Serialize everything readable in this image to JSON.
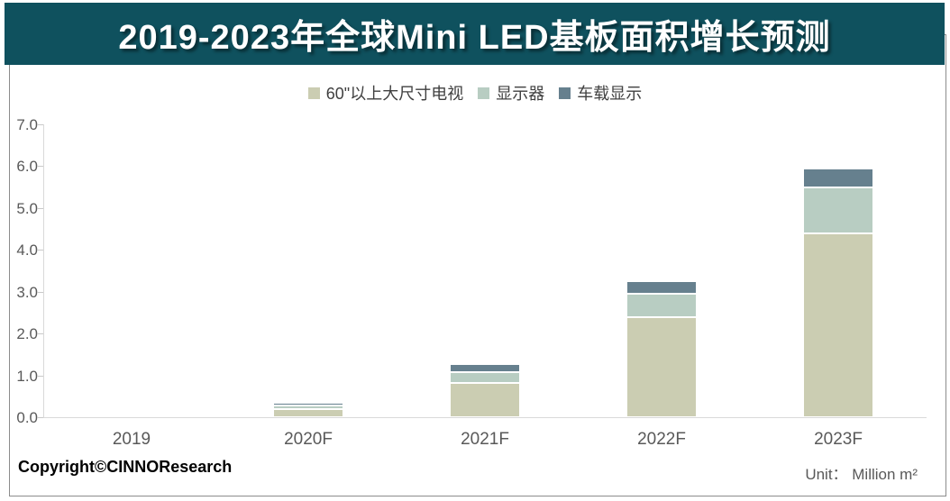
{
  "title": "2019-2023年全球Mini LED基板面积增长预测",
  "footer": {
    "copyright": "Copyright©CINNOResearch",
    "unit": "Unit： Million m²"
  },
  "colors": {
    "banner_background": "#0f515e",
    "title_text": "#ffffff",
    "axis_text": "#595959",
    "legend_text": "#404040",
    "axis_line": "#d9d9d9",
    "frame_border": "#8c8c8c",
    "series_tv": "#cbcdb2",
    "series_monitor": "#b8cdc2",
    "series_auto": "#66808e"
  },
  "chart_data": {
    "type": "bar",
    "stacked": true,
    "title": "2019-2023年全球Mini LED基板面积增长预测",
    "categories": [
      "2019",
      "2020F",
      "2021F",
      "2022F",
      "2023F"
    ],
    "series": [
      {
        "name": "60\"以上大尺寸电视",
        "color": "#cbcdb2",
        "values": [
          0,
          0.2,
          0.82,
          2.4,
          4.4
        ]
      },
      {
        "name": "显示器",
        "color": "#b8cdc2",
        "values": [
          0,
          0.07,
          0.25,
          0.55,
          1.1
        ]
      },
      {
        "name": "车载显示",
        "color": "#66808e",
        "values": [
          0,
          0.08,
          0.2,
          0.3,
          0.45
        ]
      }
    ],
    "totals": [
      0,
      0.35,
      1.27,
      3.25,
      5.95
    ],
    "xlabel": "",
    "ylabel": "",
    "unit": "Million m²",
    "ylim": [
      0,
      7.0
    ],
    "ytick_step": 1.0,
    "ytick_labels": [
      "0.0",
      "1.0",
      "2.0",
      "3.0",
      "4.0",
      "5.0",
      "6.0",
      "7.0"
    ],
    "legend_position": "top-center",
    "grid": false
  }
}
